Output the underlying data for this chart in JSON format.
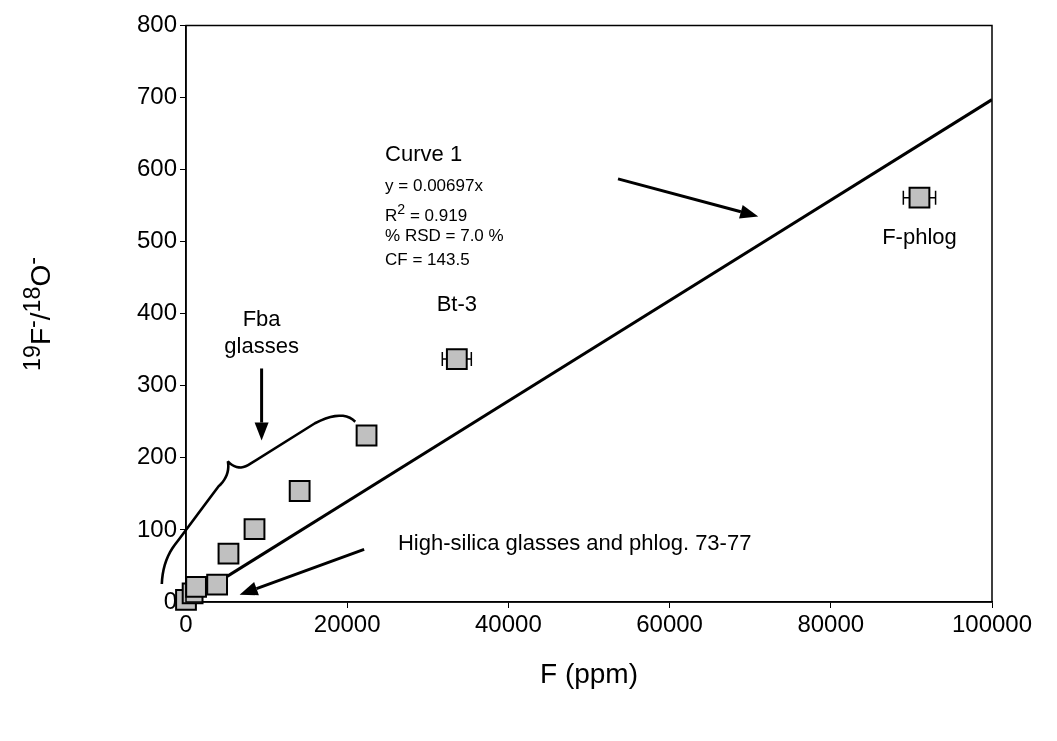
{
  "chart_data": {
    "type": "scatter",
    "xlabel": "F (ppm)",
    "ylabel": "$^{19}$F$^{-}$/$^{18}$O$^{-}$",
    "xlim": [
      0,
      100000
    ],
    "xticks": [
      0,
      20000,
      40000,
      60000,
      80000,
      100000
    ],
    "ylim": [
      0,
      800
    ],
    "yticks": [
      0,
      100,
      200,
      300,
      400,
      500,
      600,
      700,
      800
    ],
    "grid": false,
    "legend": false,
    "marker": "square",
    "series": [
      {
        "color": "#c0c0c0",
        "x": [
          0,
          820,
          1250,
          3860,
          5270,
          8500,
          14100,
          22400,
          33600,
          91000
        ],
        "values": [
          3,
          12,
          21,
          24,
          67,
          101,
          154,
          231,
          337,
          561
        ],
        "xerrors": [
          null,
          null,
          null,
          null,
          null,
          null,
          null,
          null,
          1800,
          2000
        ]
      },
      {
        "type": "line",
        "color": "#000000",
        "x": [
          0,
          100000
        ],
        "values": [
          0,
          697
        ],
        "marker": "none"
      }
    ],
    "annotations": [
      "Curve 1",
      "y = 0.00697x",
      "R$^{2}$ = 0.919",
      "% RSD = 7.0 %",
      "CF = 143.5",
      "Fba glasses",
      "High-silica glasses and phlog. 73-77",
      {
        "text": "Bt-3",
        "x": 33600,
        "y": 337
      },
      {
        "text": "F-phlog",
        "x": 91000,
        "y": 561
      }
    ]
  }
}
